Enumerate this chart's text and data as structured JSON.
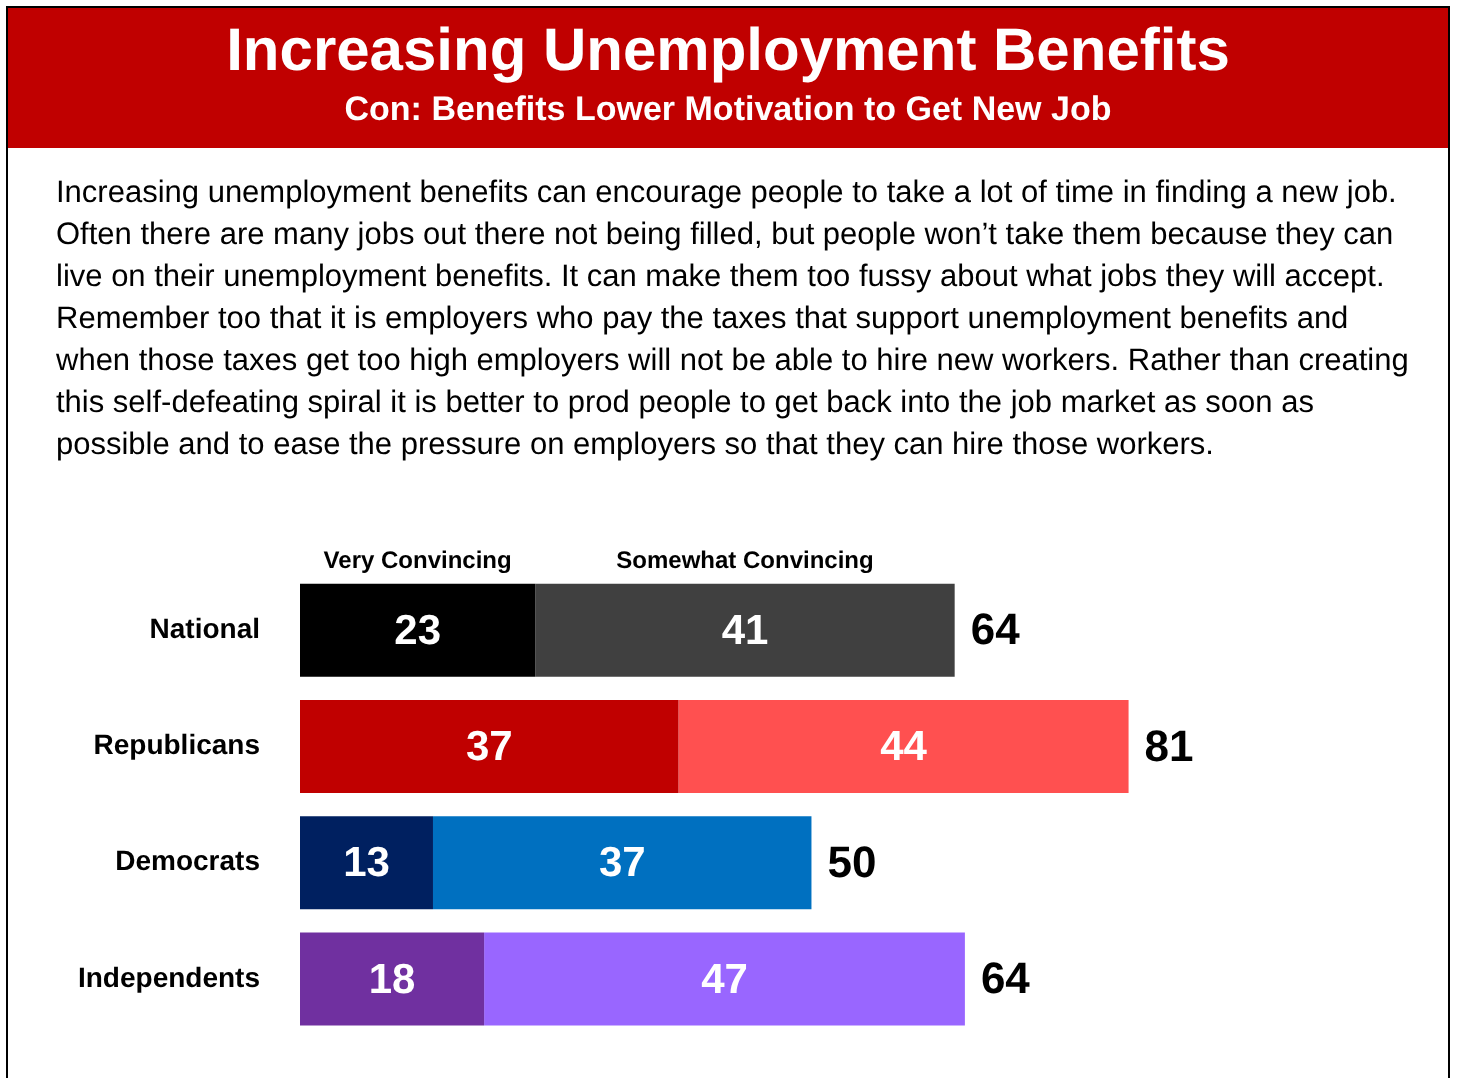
{
  "chart_data": {
    "type": "bar",
    "title": "Increasing Unemployment Benefits",
    "subtitle": "Con: Benefits Lower Motivation to Get New Job",
    "annotations": [
      "Increasing unemployment benefits can encourage people to take a lot of time in finding a new job. Often there are many jobs out there not being filled, but people won’t take them because they can live on their unemployment benefits. It can make them too fussy about what jobs they will accept. Remember too that it is employers who pay the taxes that support unemployment benefits and when those taxes get too high employers will not be able to hire new workers. Rather than creating this self-defeating spiral it is better to prod people to get back into the job market as soon as possible and to ease the pressure on employers so that they can hire those workers."
    ],
    "categories": [
      "National",
      "Republicans",
      "Democrats",
      "Independents"
    ],
    "orientation": "horizontal",
    "stacked": true,
    "data_labels": true,
    "series": [
      {
        "name": "Very Convincing",
        "colors": [
          "#000000",
          "#c00000",
          "#002060",
          "#7030a0"
        ],
        "values": [
          23,
          37,
          13,
          18
        ]
      },
      {
        "name": "Somewhat Convincing",
        "colors": [
          "#404040",
          "#ff5050",
          "#0070c0",
          "#9966ff"
        ],
        "values": [
          41,
          44,
          37,
          47
        ]
      }
    ],
    "totals": [
      "64",
      "81",
      "50",
      "64"
    ]
  }
}
